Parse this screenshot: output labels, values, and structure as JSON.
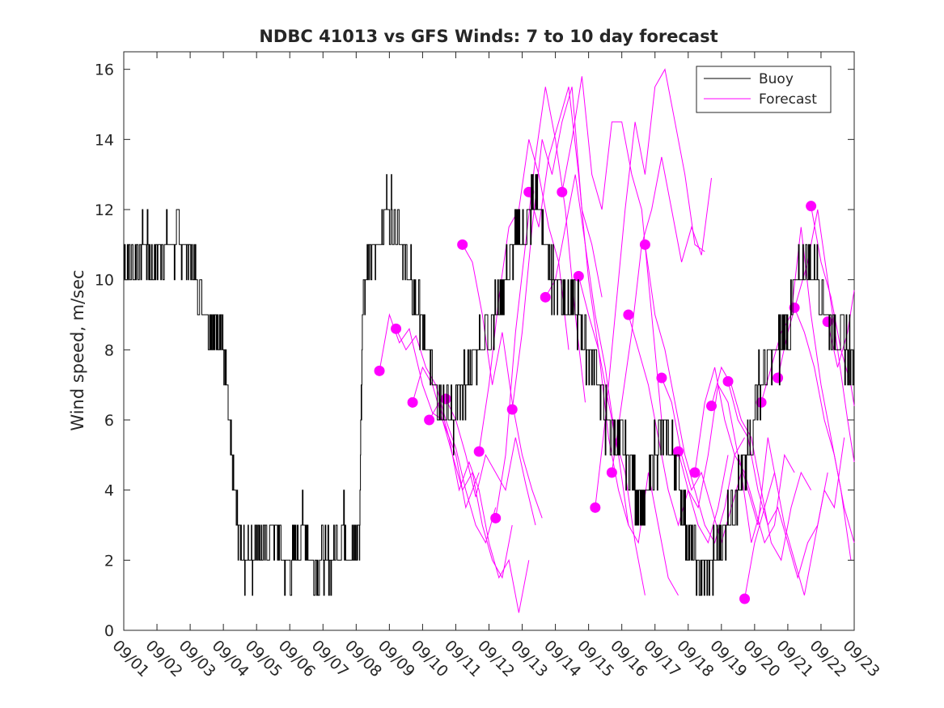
{
  "chart_data": {
    "type": "line",
    "title": "NDBC 41013 vs GFS Winds: 7 to 10 day forecast",
    "xlabel": "",
    "ylabel": "Wind speed, m/sec",
    "xlim": [
      0,
      22
    ],
    "ylim": [
      0,
      16.5
    ],
    "xtick_labels": [
      "09/01",
      "09/02",
      "09/03",
      "09/04",
      "09/05",
      "09/06",
      "09/07",
      "09/08",
      "09/09",
      "09/10",
      "09/11",
      "09/12",
      "09/13",
      "09/14",
      "09/15",
      "09/16",
      "09/17",
      "09/18",
      "09/19",
      "09/20",
      "09/21",
      "09/22",
      "09/23"
    ],
    "ytick_values": [
      0,
      2,
      4,
      6,
      8,
      10,
      12,
      14,
      16
    ],
    "ytick_labels": [
      "0",
      "2",
      "4",
      "6",
      "8",
      "10",
      "12",
      "14",
      "16"
    ],
    "legend": {
      "position": "top-right",
      "entries": [
        {
          "label": "Buoy",
          "color": "#000000"
        },
        {
          "label": "Forecast",
          "color": "#ff00ff"
        }
      ]
    },
    "colors": {
      "buoy": "#000000",
      "forecast": "#ff00ff"
    },
    "series": [
      {
        "name": "Buoy",
        "x": [
          0,
          0.3,
          0.6,
          0.9,
          1.2,
          1.5,
          1.8,
          2.0,
          2.2,
          2.5,
          2.7,
          2.9,
          3.1,
          3.3,
          3.5,
          3.7,
          3.9,
          4.0,
          4.2,
          4.5,
          4.8,
          5.1,
          5.4,
          5.7,
          6.0,
          6.3,
          6.6,
          6.9,
          7.1,
          7.2,
          7.4,
          7.6,
          7.9,
          8.1,
          8.4,
          8.6,
          8.9,
          9.1,
          9.4,
          9.6,
          9.9,
          10.1,
          10.3,
          10.6,
          10.9,
          11.2,
          11.5,
          11.8,
          12.1,
          12.4,
          12.7,
          12.9,
          13.1,
          13.4,
          13.7,
          13.9,
          14.2,
          14.5,
          14.8,
          15.1,
          15.4,
          15.7,
          16.0,
          16.3,
          16.6,
          16.9,
          17.2,
          17.5,
          17.8,
          18.1,
          18.4,
          18.7,
          18.9,
          19.1,
          19.4,
          19.7,
          20.0,
          20.3,
          20.6,
          20.9,
          21.2,
          21.5,
          21.8,
          22.0
        ],
        "values": [
          10.5,
          10.5,
          11,
          10.5,
          11,
          11,
          11,
          10.5,
          10,
          9,
          8.5,
          9,
          7,
          4,
          2.5,
          2,
          2,
          3,
          2,
          3,
          2,
          2,
          3,
          2,
          2,
          2,
          3,
          2,
          3,
          10,
          10.5,
          11,
          12,
          12,
          11,
          10,
          9,
          8,
          7,
          6.5,
          6,
          6.5,
          7,
          8,
          8.5,
          9,
          10,
          11,
          11.5,
          12.5,
          11,
          10,
          10,
          9.5,
          9,
          8,
          7.5,
          6,
          5.5,
          5,
          4,
          3.5,
          5,
          5.5,
          5,
          3,
          2,
          1.5,
          2,
          3,
          4,
          4.5,
          5.5,
          7,
          7.5,
          8,
          8.5,
          10,
          10.5,
          10,
          9,
          8.5,
          8,
          8
        ]
      },
      {
        "name": "Forecast",
        "runs": [
          {
            "x": [
              7.7,
              8.0,
              8.3,
              8.6,
              9.0,
              9.3,
              9.6,
              10.0,
              10.3,
              10.7
            ],
            "values": [
              7.4,
              9.0,
              8.2,
              8.6,
              7.0,
              6.2,
              6.0,
              5.0,
              3.5,
              4.5
            ]
          },
          {
            "x": [
              8.2,
              8.5,
              8.8,
              9.1,
              9.4,
              9.7,
              10.0,
              10.3,
              10.6,
              10.9,
              11.2
            ],
            "values": [
              8.6,
              8.0,
              8.4,
              7.5,
              7.0,
              6.0,
              5.2,
              4.0,
              3.0,
              2.5,
              3.5
            ]
          },
          {
            "x": [
              8.7,
              9.0,
              9.3,
              9.6,
              9.9,
              10.2,
              10.5,
              10.8,
              11.1,
              11.4,
              11.7
            ],
            "values": [
              6.5,
              7.5,
              7.0,
              6.0,
              5.0,
              4.0,
              4.5,
              3.0,
              2.0,
              1.5,
              3.0
            ]
          },
          {
            "x": [
              9.2,
              9.5,
              9.8,
              10.1,
              10.4,
              10.7,
              11.0,
              11.3,
              11.6,
              11.9,
              12.2
            ],
            "values": [
              6.0,
              6.5,
              5.5,
              4.0,
              4.8,
              4.0,
              2.5,
              1.5,
              2.0,
              0.5,
              2.0
            ]
          },
          {
            "x": [
              9.7,
              10.0,
              10.3,
              10.6,
              10.9,
              11.2,
              11.5,
              11.8,
              12.1,
              12.4
            ],
            "values": [
              6.6,
              6.0,
              5.0,
              3.8,
              5.0,
              4.5,
              4.0,
              5.5,
              4.2,
              3.0
            ]
          },
          {
            "x": [
              10.2,
              10.5,
              10.8,
              11.1,
              11.4,
              11.7,
              12.0,
              12.3,
              12.6
            ],
            "values": [
              11.0,
              10.5,
              9.0,
              7.0,
              8.5,
              6.5,
              5.0,
              4.0,
              3.2
            ]
          },
          {
            "x": [
              10.7,
              11.0,
              11.3,
              11.6,
              11.9,
              12.2,
              12.5,
              12.8,
              13.1,
              13.4
            ],
            "values": [
              5.1,
              7.0,
              9.5,
              11.5,
              12.0,
              14.0,
              13.0,
              11.5,
              10.5,
              8.0
            ]
          },
          {
            "x": [
              11.2,
              11.5,
              11.8,
              12.1,
              12.4,
              12.7,
              13.0,
              13.3,
              13.6,
              13.9
            ],
            "values": [
              3.2,
              5.0,
              8.5,
              11.0,
              13.5,
              15.5,
              14.0,
              12.0,
              9.0,
              6.5
            ]
          },
          {
            "x": [
              11.7,
              12.0,
              12.3,
              12.6,
              12.9,
              13.2,
              13.5,
              13.8,
              14.1,
              14.4
            ],
            "values": [
              6.3,
              8.5,
              11.5,
              14.0,
              13.0,
              14.5,
              15.5,
              12.0,
              11.0,
              9.5
            ]
          },
          {
            "x": [
              12.2,
              12.5,
              12.8,
              13.1,
              13.4,
              13.7,
              14.0,
              14.3,
              14.6,
              14.9,
              15.2
            ],
            "values": [
              12.5,
              11.5,
              13.5,
              14.5,
              15.5,
              13.0,
              10.0,
              8.0,
              5.5,
              4.0,
              3.0
            ]
          },
          {
            "x": [
              12.7,
              13.0,
              13.3,
              13.6,
              13.9,
              14.2,
              14.5,
              14.8,
              15.1,
              15.4,
              15.7
            ],
            "values": [
              9.5,
              10.0,
              11.5,
              13.0,
              11.0,
              9.0,
              7.5,
              5.5,
              4.5,
              2.5,
              1.0
            ]
          },
          {
            "x": [
              13.2,
              13.5,
              13.8,
              14.1,
              14.4,
              14.7,
              15.0,
              15.3,
              15.6,
              15.9,
              16.2
            ],
            "values": [
              12.5,
              14.0,
              15.8,
              13.0,
              12.0,
              14.5,
              14.5,
              13.0,
              12.0,
              9.0,
              6.0
            ]
          },
          {
            "x": [
              13.7,
              14.0,
              14.3,
              14.6,
              14.9,
              15.2,
              15.5,
              15.8,
              16.1,
              16.4,
              16.7
            ],
            "values": [
              10.1,
              9.0,
              8.0,
              6.5,
              5.0,
              3.0,
              2.5,
              4.5,
              3.0,
              1.5,
              1.0
            ]
          },
          {
            "x": [
              14.2,
              14.5,
              14.8,
              15.1,
              15.4,
              15.7,
              16.0,
              16.3,
              16.6,
              16.9,
              17.2,
              17.5
            ],
            "values": [
              3.5,
              6.0,
              9.0,
              12.0,
              14.5,
              13.0,
              15.5,
              16.0,
              14.5,
              13.0,
              11.0,
              10.8
            ]
          },
          {
            "x": [
              14.7,
              15.0,
              15.3,
              15.6,
              15.9,
              16.2,
              16.5,
              16.8,
              17.1,
              17.4,
              17.7
            ],
            "values": [
              4.5,
              6.5,
              8.5,
              11.0,
              12.0,
              13.5,
              12.0,
              10.5,
              11.5,
              10.7,
              12.9
            ]
          },
          {
            "x": [
              15.2,
              15.5,
              15.8,
              16.1,
              16.4,
              16.7,
              17.0,
              17.3,
              17.6,
              17.9,
              18.2
            ],
            "values": [
              9.0,
              8.0,
              7.0,
              5.5,
              4.0,
              3.0,
              4.0,
              3.0,
              2.5,
              3.5,
              5.0
            ]
          },
          {
            "x": [
              15.7,
              16.0,
              16.3,
              16.6,
              16.9,
              17.2,
              17.5,
              17.8,
              18.1,
              18.4,
              18.7
            ],
            "values": [
              11.0,
              9.0,
              8.0,
              6.5,
              5.0,
              4.0,
              3.0,
              2.5,
              3.5,
              5.0,
              5.5
            ]
          },
          {
            "x": [
              16.2,
              16.5,
              16.8,
              17.1,
              17.4,
              17.7,
              18.0,
              18.3,
              18.6,
              18.9,
              19.2
            ],
            "values": [
              7.2,
              6.5,
              5.0,
              4.0,
              4.5,
              3.5,
              2.5,
              3.5,
              4.5,
              2.5,
              3.5
            ]
          },
          {
            "x": [
              16.7,
              17.0,
              17.3,
              17.6,
              17.9,
              18.2,
              18.5,
              18.8,
              19.1,
              19.4,
              19.7
            ],
            "values": [
              5.1,
              4.0,
              3.5,
              5.0,
              7.0,
              6.5,
              5.0,
              4.0,
              3.0,
              5.5,
              4.0
            ]
          },
          {
            "x": [
              17.2,
              17.5,
              17.8,
              18.1,
              18.4,
              18.7,
              19.0,
              19.3,
              19.6,
              19.9,
              20.2
            ],
            "values": [
              4.5,
              6.5,
              7.5,
              6.0,
              5.0,
              4.5,
              3.5,
              2.5,
              3.0,
              5.0,
              4.5
            ]
          },
          {
            "x": [
              17.7,
              18.0,
              18.3,
              18.6,
              18.9,
              19.2,
              19.5,
              19.8,
              20.1,
              20.4,
              20.7
            ],
            "values": [
              6.4,
              7.5,
              7.0,
              6.0,
              5.5,
              4.0,
              2.5,
              2.0,
              3.5,
              4.5,
              4.0
            ]
          },
          {
            "x": [
              18.2,
              18.5,
              18.8,
              19.1,
              19.4,
              19.7,
              20.0,
              20.3,
              20.6,
              20.9,
              21.2
            ],
            "values": [
              7.1,
              6.0,
              5.5,
              4.0,
              3.0,
              3.5,
              2.5,
              1.5,
              2.5,
              3.0,
              4.5
            ]
          },
          {
            "x": [
              18.7,
              19.0,
              19.3,
              19.6,
              19.9,
              20.2,
              20.5,
              20.8,
              21.1,
              21.4,
              21.7
            ],
            "values": [
              0.9,
              2.5,
              3.5,
              4.5,
              3.0,
              2.0,
              1.0,
              2.5,
              4.0,
              3.5,
              5.5
            ]
          },
          {
            "x": [
              19.2,
              19.5,
              19.8,
              20.1,
              20.4,
              20.7,
              21.0,
              21.3,
              21.6,
              21.9
            ],
            "values": [
              6.5,
              7.5,
              8.5,
              9.0,
              11.5,
              9.0,
              7.0,
              5.5,
              4.0,
              2.0
            ]
          },
          {
            "x": [
              19.7,
              20.0,
              20.3,
              20.6,
              20.9,
              21.2,
              21.5,
              21.8,
              22.0
            ],
            "values": [
              7.2,
              8.5,
              9.5,
              10.5,
              12.0,
              10.0,
              8.0,
              6.0,
              4.8
            ]
          },
          {
            "x": [
              20.2,
              20.5,
              20.8,
              21.1,
              21.4,
              21.7,
              22.0
            ],
            "values": [
              9.2,
              8.5,
              7.5,
              6.0,
              5.0,
              3.5,
              2.5
            ]
          },
          {
            "x": [
              20.7,
              21.0,
              21.3,
              21.6,
              21.9,
              22.0
            ],
            "values": [
              12.1,
              10.5,
              9.5,
              8.0,
              7.0,
              6.4
            ]
          },
          {
            "x": [
              21.2,
              21.5,
              21.8,
              22.0
            ],
            "values": [
              8.8,
              7.5,
              8.5,
              9.7
            ]
          }
        ]
      }
    ]
  }
}
